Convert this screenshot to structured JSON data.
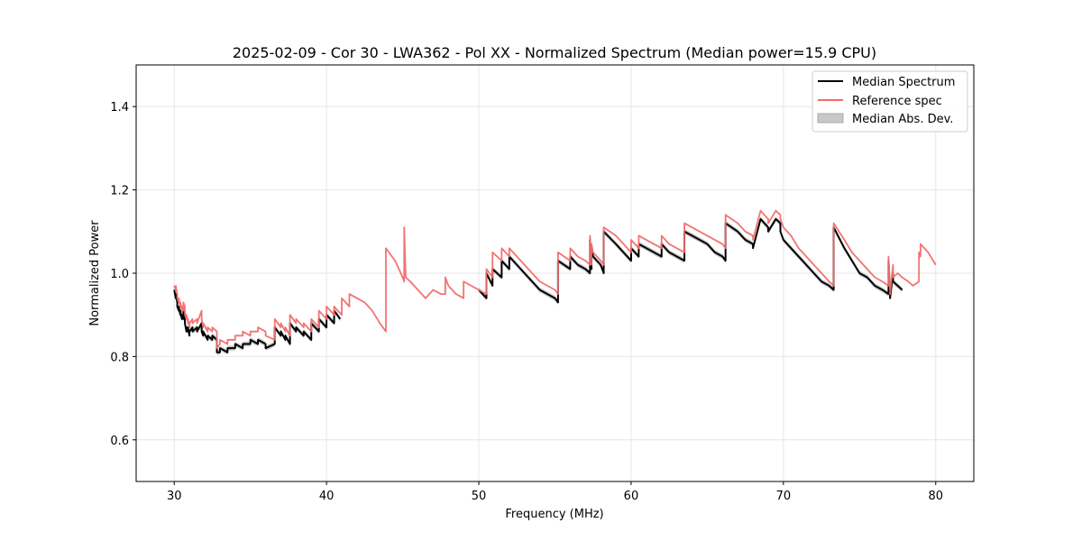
{
  "chart_data": {
    "type": "line",
    "title": "2025-02-09 - Cor 30 - LWA362 - Pol XX - Normalized Spectrum (Median power=15.9 CPU)",
    "xlabel": "Frequency (MHz)",
    "ylabel": "Normalized Power",
    "xlim": [
      27.5,
      82.5
    ],
    "ylim": [
      0.5,
      1.5
    ],
    "xticks": [
      30,
      40,
      50,
      60,
      70,
      80
    ],
    "yticks": [
      0.6,
      0.8,
      1.0,
      1.2,
      1.4
    ],
    "xtick_labels": [
      "30",
      "40",
      "50",
      "60",
      "70",
      "80"
    ],
    "ytick_labels": [
      "0.6",
      "0.8",
      "1.0",
      "1.2",
      "1.4"
    ],
    "grid": true,
    "legend_position": "top-right",
    "legend": [
      "Median Spectrum",
      "Reference spec",
      "Median Abs. Dev."
    ],
    "colors": {
      "median": "#000000",
      "reference": "#f26b6b",
      "mad_fill": "#c8c8c8",
      "grid": "#e6e6e6"
    },
    "series": [
      {
        "name": "Reference spec",
        "x": [
          30.0,
          30.1,
          30.1,
          30.2,
          30.2,
          30.3,
          30.3,
          30.4,
          30.4,
          30.5,
          30.5,
          30.6,
          30.6,
          30.7,
          30.7,
          30.8,
          30.8,
          30.9,
          30.9,
          31.0,
          31.0,
          31.2,
          31.2,
          31.5,
          31.5,
          31.8,
          31.8,
          31.9,
          31.9,
          32.2,
          32.2,
          32.5,
          32.5,
          32.8,
          32.8,
          33.0,
          33.0,
          33.5,
          33.5,
          34.0,
          34.0,
          34.5,
          34.5,
          35.0,
          35.0,
          35.5,
          35.5,
          36.0,
          36.0,
          36.6,
          36.6,
          37.0,
          37.0,
          37.3,
          37.3,
          37.6,
          37.6,
          38.0,
          38.0,
          38.5,
          38.5,
          39.0,
          39.0,
          39.5,
          39.5,
          40.0,
          40.0,
          40.5,
          40.5,
          41.0,
          41.0,
          41.5,
          41.5,
          42.0,
          42.5,
          43.0,
          43.5,
          43.9,
          43.9,
          44.5,
          45.0,
          45.1,
          45.1,
          45.2,
          45.5,
          46.0,
          46.5,
          47.0,
          47.5,
          47.8,
          47.8,
          48.0,
          48.5,
          49.0,
          49.0,
          49.5,
          50.0,
          50.5,
          50.5,
          50.9,
          50.9,
          51.5,
          51.5,
          52.0,
          52.0,
          52.5,
          53.0,
          53.5,
          54.0,
          54.5,
          55.0,
          55.2,
          55.2,
          56.0,
          56.0,
          56.5,
          57.0,
          57.3,
          57.3,
          57.4,
          57.4,
          57.5,
          58.0,
          58.2,
          58.2,
          59.0,
          59.5,
          60.0,
          60.0,
          60.5,
          60.5,
          61.0,
          61.5,
          62.0,
          62.0,
          62.5,
          63.0,
          63.5,
          63.5,
          64.0,
          64.5,
          65.0,
          65.5,
          66.0,
          66.2,
          66.2,
          67.0,
          67.5,
          68.0,
          68.0,
          68.5,
          69.0,
          69.0,
          69.5,
          69.8,
          69.8,
          70.0,
          70.5,
          71.0,
          71.5,
          72.0,
          72.5,
          73.0,
          73.3,
          73.3,
          74.0,
          74.5,
          75.0,
          75.5,
          76.0,
          76.5,
          76.9,
          76.9,
          77.0,
          77.0,
          77.2,
          77.2,
          77.5,
          77.8,
          78.2,
          78.5,
          78.9,
          78.9,
          79.0,
          79.0,
          79.5,
          80.0
        ],
        "y": [
          0.97,
          0.96,
          0.97,
          0.95,
          0.94,
          0.93,
          0.94,
          0.92,
          0.93,
          0.91,
          0.92,
          0.91,
          0.93,
          0.92,
          0.9,
          0.89,
          0.9,
          0.88,
          0.89,
          0.87,
          0.88,
          0.89,
          0.88,
          0.89,
          0.88,
          0.91,
          0.89,
          0.87,
          0.88,
          0.86,
          0.87,
          0.86,
          0.87,
          0.86,
          0.82,
          0.83,
          0.84,
          0.83,
          0.84,
          0.84,
          0.85,
          0.85,
          0.86,
          0.85,
          0.86,
          0.86,
          0.87,
          0.86,
          0.85,
          0.84,
          0.89,
          0.87,
          0.88,
          0.86,
          0.87,
          0.85,
          0.9,
          0.88,
          0.89,
          0.87,
          0.88,
          0.86,
          0.89,
          0.87,
          0.91,
          0.89,
          0.92,
          0.9,
          0.92,
          0.9,
          0.94,
          0.92,
          0.95,
          0.94,
          0.93,
          0.91,
          0.88,
          0.86,
          1.06,
          1.03,
          0.99,
          0.98,
          1.11,
          0.99,
          0.98,
          0.96,
          0.94,
          0.96,
          0.95,
          0.95,
          0.99,
          0.97,
          0.95,
          0.94,
          0.98,
          0.97,
          0.96,
          0.95,
          1.01,
          0.99,
          1.05,
          1.03,
          1.06,
          1.04,
          1.06,
          1.04,
          1.02,
          1.0,
          0.98,
          0.97,
          0.96,
          0.95,
          1.05,
          1.03,
          1.06,
          1.04,
          1.03,
          1.02,
          1.09,
          1.02,
          1.07,
          1.05,
          1.03,
          1.02,
          1.11,
          1.09,
          1.07,
          1.05,
          1.08,
          1.06,
          1.09,
          1.08,
          1.07,
          1.06,
          1.09,
          1.07,
          1.06,
          1.05,
          1.12,
          1.11,
          1.1,
          1.09,
          1.08,
          1.07,
          1.06,
          1.14,
          1.12,
          1.1,
          1.09,
          1.08,
          1.15,
          1.13,
          1.12,
          1.15,
          1.14,
          1.13,
          1.11,
          1.09,
          1.06,
          1.04,
          1.02,
          1.0,
          0.98,
          0.97,
          1.12,
          1.08,
          1.05,
          1.03,
          1.01,
          0.99,
          0.98,
          0.97,
          1.04,
          0.96,
          0.95,
          1.02,
          0.99,
          1.0,
          0.99,
          0.98,
          0.97,
          0.98,
          1.05,
          1.04,
          1.07,
          1.05,
          1.02
        ]
      },
      {
        "name": "Median Spectrum",
        "segments": [
          {
            "x": [
              30.0,
              30.1,
              30.1,
              30.2,
              30.2,
              30.3,
              30.3,
              30.4,
              30.4,
              30.5,
              30.5,
              30.6,
              30.6,
              30.7,
              30.7,
              30.8,
              30.8,
              30.9,
              30.9,
              31.0,
              31.0,
              31.2,
              31.2,
              31.5,
              31.5,
              31.8,
              31.8,
              31.9,
              31.9,
              32.2,
              32.2,
              32.5,
              32.5,
              32.8,
              32.8,
              33.0,
              33.0,
              33.5,
              33.5,
              34.0,
              34.0,
              34.5,
              34.5,
              35.0,
              35.0,
              35.5,
              35.5,
              36.0,
              36.0,
              36.6,
              36.6,
              37.0,
              37.0,
              37.3,
              37.3,
              37.6,
              37.6,
              38.0,
              38.0,
              38.5,
              38.5,
              39.0,
              39.0,
              39.5,
              39.5,
              40.0,
              40.0,
              40.5,
              40.5,
              40.9
            ],
            "y": [
              0.96,
              0.94,
              0.95,
              0.93,
              0.92,
              0.91,
              0.92,
              0.9,
              0.91,
              0.89,
              0.9,
              0.89,
              0.91,
              0.9,
              0.88,
              0.86,
              0.87,
              0.86,
              0.87,
              0.85,
              0.86,
              0.87,
              0.86,
              0.87,
              0.86,
              0.88,
              0.86,
              0.85,
              0.86,
              0.84,
              0.85,
              0.84,
              0.85,
              0.84,
              0.81,
              0.81,
              0.82,
              0.81,
              0.82,
              0.82,
              0.83,
              0.82,
              0.83,
              0.83,
              0.84,
              0.83,
              0.84,
              0.83,
              0.82,
              0.83,
              0.87,
              0.85,
              0.86,
              0.84,
              0.85,
              0.83,
              0.88,
              0.86,
              0.87,
              0.85,
              0.86,
              0.84,
              0.88,
              0.86,
              0.89,
              0.87,
              0.9,
              0.88,
              0.91,
              0.89
            ]
          },
          {
            "x": [
              50.0,
              50.5,
              50.5,
              50.9,
              50.9,
              51.5,
              51.5,
              52.0,
              52.0,
              52.5,
              53.0,
              53.5,
              54.0,
              54.5,
              55.0,
              55.2,
              55.2,
              56.0,
              56.0,
              56.5,
              57.0,
              57.3,
              57.3,
              57.4,
              57.4,
              57.5,
              58.0,
              58.2,
              58.2,
              59.0,
              59.5,
              60.0,
              60.0,
              60.5,
              60.5,
              61.0,
              61.5,
              62.0,
              62.0,
              62.5,
              63.0,
              63.5,
              63.5,
              64.0,
              64.5,
              65.0,
              65.5,
              66.0,
              66.2,
              66.2,
              67.0,
              67.5,
              68.0,
              68.0,
              68.5,
              69.0,
              69.0,
              69.5,
              69.8,
              69.8,
              70.0,
              70.5,
              71.0,
              71.5,
              72.0,
              72.5,
              73.0,
              73.3,
              73.3,
              74.0,
              74.5,
              75.0,
              75.5,
              76.0,
              76.5,
              76.9,
              76.9,
              77.0,
              77.0,
              77.2,
              77.2,
              77.5,
              77.8
            ],
            "y": [
              0.96,
              0.94,
              1.0,
              0.97,
              1.01,
              0.99,
              1.03,
              1.01,
              1.04,
              1.02,
              1.0,
              0.98,
              0.96,
              0.95,
              0.94,
              0.93,
              1.03,
              1.01,
              1.04,
              1.02,
              1.01,
              1.0,
              1.08,
              1.01,
              1.06,
              1.04,
              1.02,
              1.0,
              1.1,
              1.07,
              1.05,
              1.03,
              1.06,
              1.04,
              1.07,
              1.06,
              1.05,
              1.04,
              1.07,
              1.05,
              1.04,
              1.03,
              1.1,
              1.09,
              1.08,
              1.07,
              1.05,
              1.04,
              1.03,
              1.12,
              1.1,
              1.08,
              1.07,
              1.06,
              1.13,
              1.11,
              1.1,
              1.13,
              1.12,
              1.1,
              1.08,
              1.06,
              1.04,
              1.02,
              1.0,
              0.98,
              0.97,
              0.96,
              1.11,
              1.06,
              1.03,
              1.0,
              0.99,
              0.97,
              0.96,
              0.95,
              1.03,
              0.95,
              0.94,
              1.0,
              0.98,
              0.97,
              0.96
            ]
          }
        ],
        "mad_band": 0.006
      }
    ]
  }
}
